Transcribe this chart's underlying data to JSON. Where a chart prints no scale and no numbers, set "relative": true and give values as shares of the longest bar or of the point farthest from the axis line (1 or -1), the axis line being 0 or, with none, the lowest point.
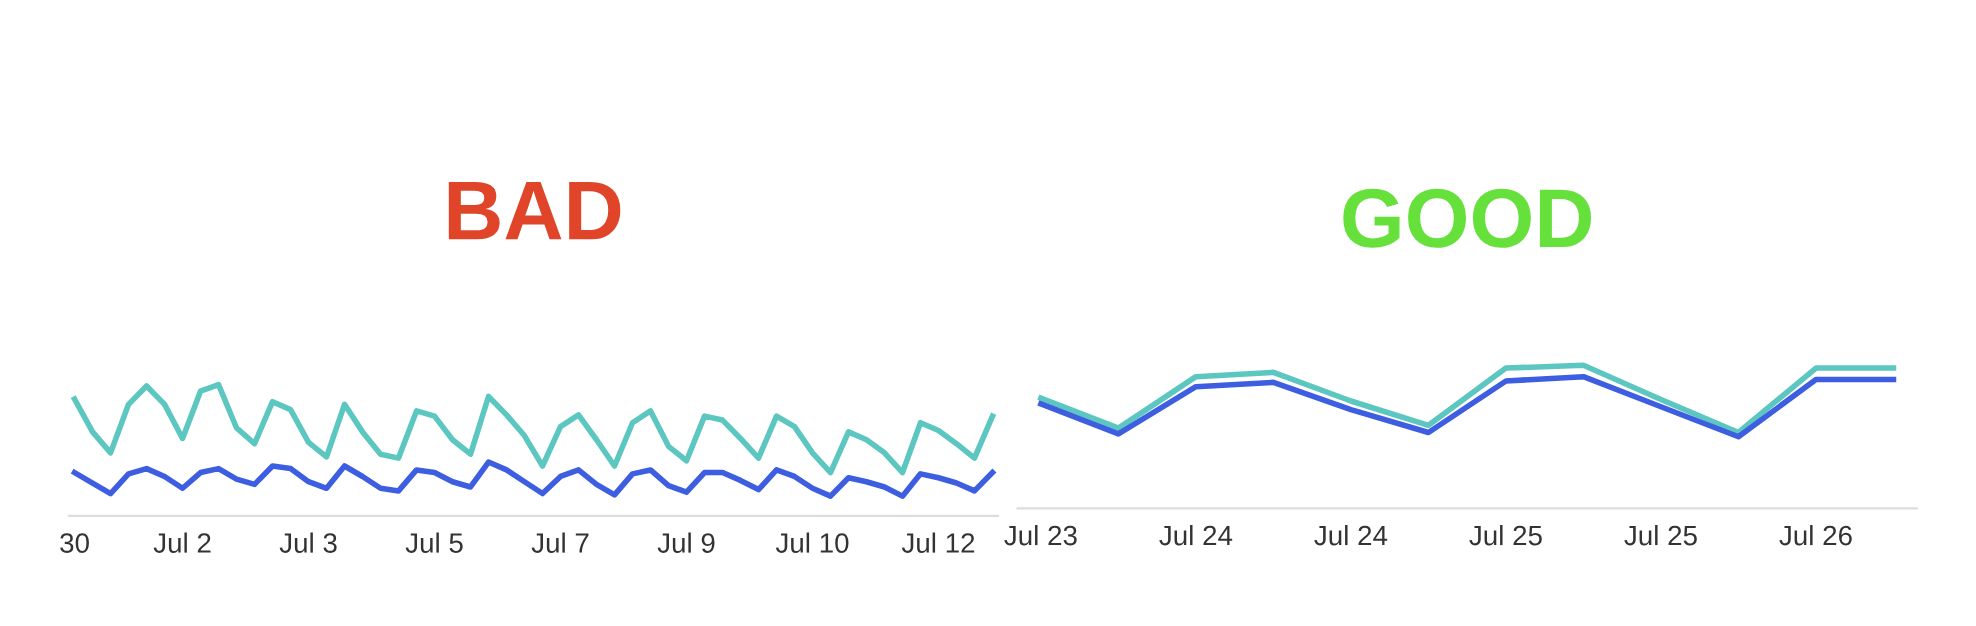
{
  "chart_data": [
    {
      "type": "line",
      "title": "BAD",
      "relative": true,
      "categories": [
        "30",
        null,
        null,
        null,
        null,
        null,
        "Jul 2",
        null,
        null,
        null,
        null,
        null,
        null,
        "Jul 3",
        null,
        null,
        null,
        null,
        null,
        null,
        "Jul 5",
        null,
        null,
        null,
        null,
        null,
        null,
        "Jul 7",
        null,
        null,
        null,
        null,
        null,
        null,
        "Jul 9",
        null,
        null,
        null,
        null,
        null,
        null,
        "Jul 10",
        null,
        null,
        null,
        null,
        null,
        null,
        "Jul 12",
        null,
        null,
        null
      ],
      "series": [
        {
          "color": "#5cc6c0",
          "values": [
            0.89,
            0.64,
            0.48,
            0.85,
            0.99,
            0.85,
            0.59,
            0.95,
            1,
            0.67,
            0.55,
            0.87,
            0.81,
            0.56,
            0.45,
            0.85,
            0.64,
            0.47,
            0.44,
            0.8,
            0.76,
            0.58,
            0.47,
            0.91,
            0.77,
            0.61,
            0.38,
            0.68,
            0.77,
            0.58,
            0.38,
            0.71,
            0.8,
            0.53,
            0.42,
            0.76,
            0.73,
            0.59,
            0.44,
            0.76,
            0.68,
            0.48,
            0.33,
            0.64,
            0.58,
            0.48,
            0.33,
            0.71,
            0.65,
            0.55,
            0.44,
            0.76
          ]
        },
        {
          "color": "#3d5ee0",
          "values": [
            0.33,
            0.25,
            0.17,
            0.32,
            0.36,
            0.3,
            0.21,
            0.33,
            0.36,
            0.28,
            0.24,
            0.38,
            0.36,
            0.26,
            0.21,
            0.38,
            0.3,
            0.21,
            0.19,
            0.35,
            0.33,
            0.26,
            0.22,
            0.41,
            0.35,
            0.26,
            0.17,
            0.3,
            0.35,
            0.24,
            0.16,
            0.32,
            0.35,
            0.23,
            0.18,
            0.33,
            0.33,
            0.27,
            0.2,
            0.35,
            0.3,
            0.21,
            0.15,
            0.29,
            0.26,
            0.22,
            0.15,
            0.32,
            0.29,
            0.25,
            0.19,
            0.33
          ]
        }
      ]
    },
    {
      "type": "line",
      "title": "GOOD",
      "relative": true,
      "categories": [
        "Jul 23",
        null,
        "Jul 24",
        null,
        "Jul 24",
        null,
        "Jul 25",
        null,
        "Jul 25",
        null,
        "Jul 26",
        null
      ],
      "series": [
        {
          "color": "#5cc6c0",
          "values": [
            0.77,
            0.56,
            0.92,
            0.95,
            0.75,
            0.58,
            0.98,
            1,
            0.76,
            0.53,
            0.98,
            0.98
          ]
        },
        {
          "color": "#3d5ee0",
          "values": [
            0.73,
            0.52,
            0.85,
            0.88,
            0.69,
            0.53,
            0.89,
            0.92,
            0.71,
            0.5,
            0.9,
            0.9
          ]
        }
      ]
    }
  ]
}
